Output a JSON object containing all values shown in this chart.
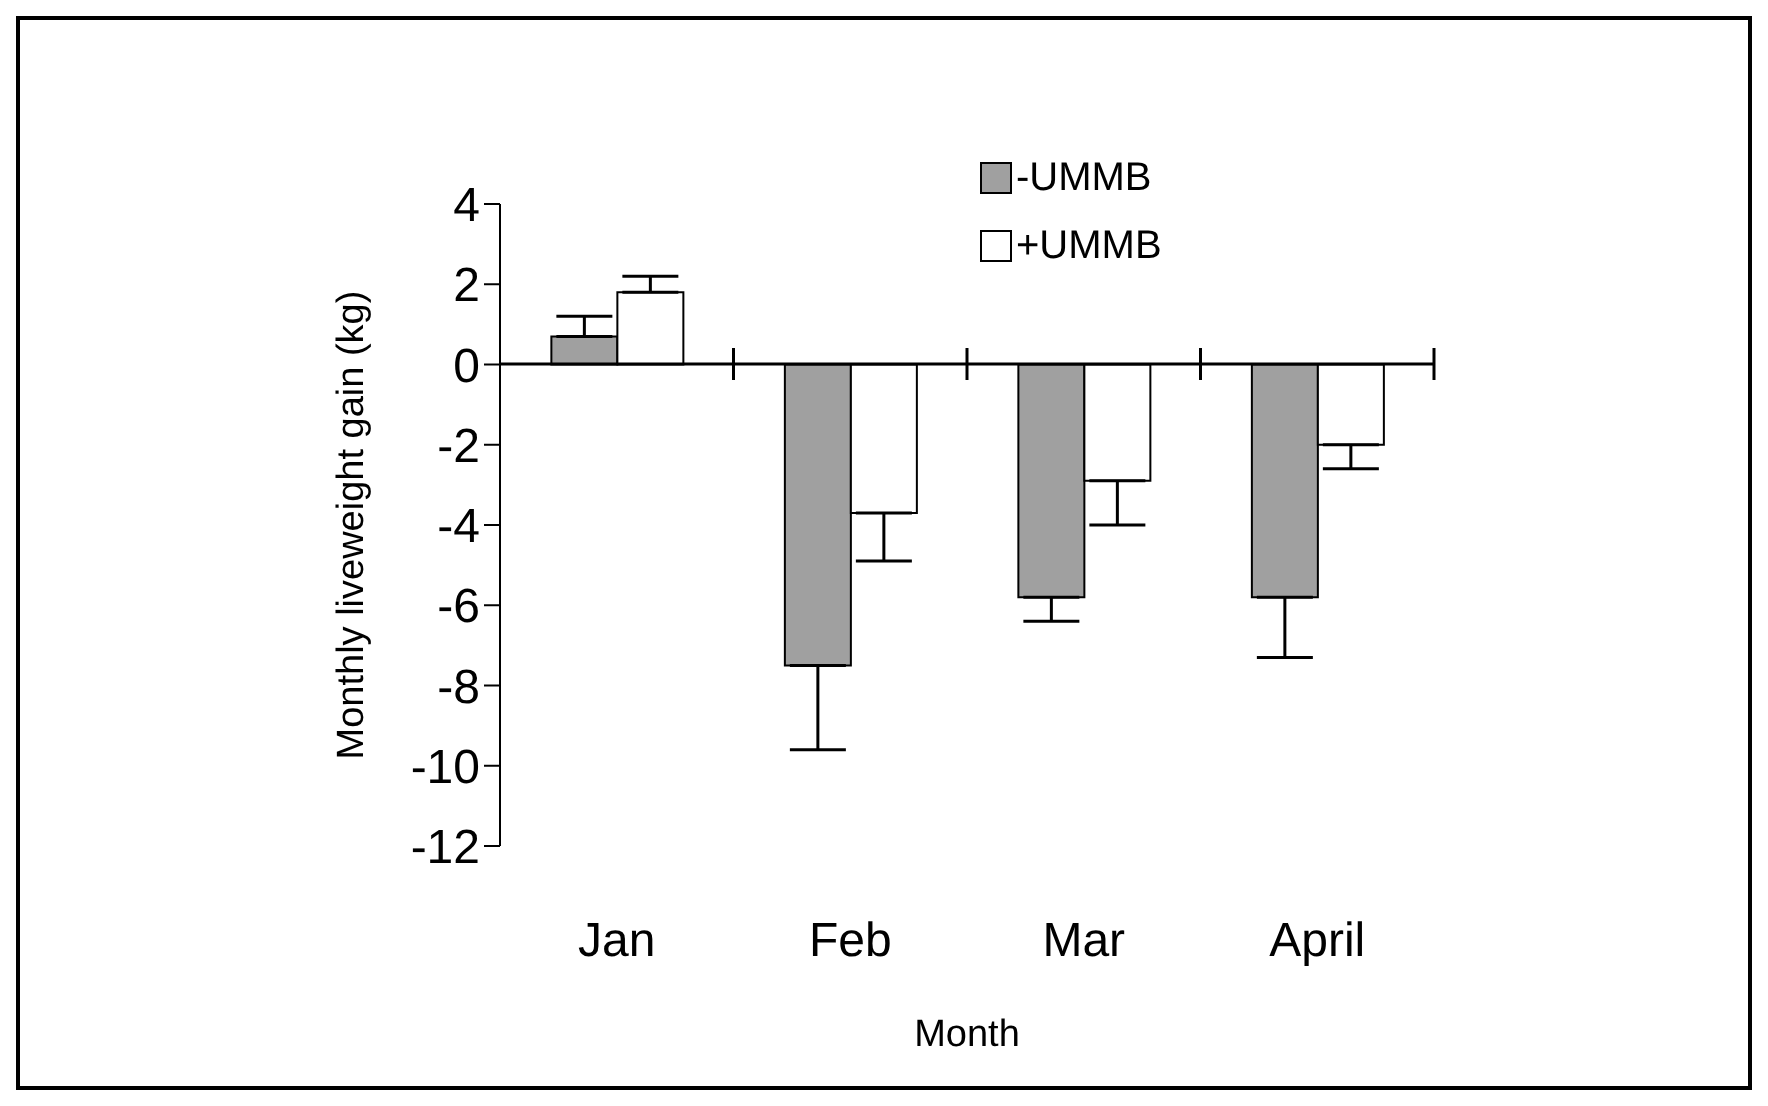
{
  "chart_data": {
    "type": "bar",
    "xlabel": "Month",
    "ylabel": "Monthly liveweight gain (kg)",
    "categories": [
      "Jan",
      "Feb",
      "Mar",
      "April"
    ],
    "series": [
      {
        "name": "-UMMB",
        "color": "#a0a0a0",
        "values": [
          0.7,
          -7.5,
          -5.8,
          -5.8
        ],
        "errors": [
          [
            0.7,
            1.2
          ],
          [
            -9.6,
            -7.5
          ],
          [
            -6.4,
            -5.8
          ],
          [
            -7.3,
            -5.8
          ]
        ]
      },
      {
        "name": "+UMMB",
        "color": "#ffffff",
        "values": [
          1.8,
          -3.7,
          -2.9,
          -2.0
        ],
        "errors": [
          [
            1.8,
            2.2
          ],
          [
            -4.9,
            -3.7
          ],
          [
            -4.0,
            -2.9
          ],
          [
            -2.6,
            -2.0
          ]
        ]
      }
    ],
    "ylim": [
      -12,
      4
    ],
    "yticks": [
      -12,
      -10,
      -8,
      -6,
      -4,
      -2,
      0,
      2,
      4
    ],
    "legend": "top right"
  }
}
